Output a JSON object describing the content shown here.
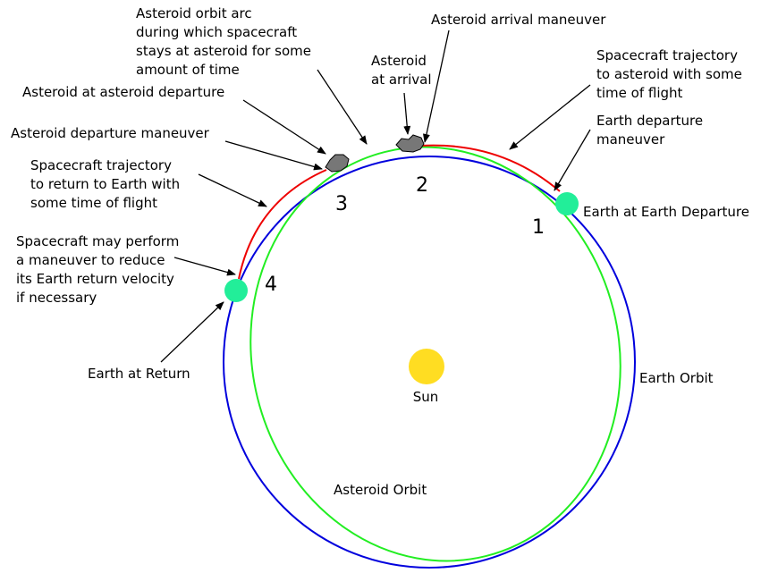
{
  "labels": {
    "orbit_arc": [
      "Asteroid orbit arc",
      "during which spacecraft",
      "stays at asteroid for some",
      "amount of time"
    ],
    "arrival_maneuver": [
      "Asteroid arrival maneuver"
    ],
    "asteroid_at_arrival": [
      "Asteroid",
      "at arrival"
    ],
    "trajectory_to_asteroid": [
      "Spacecraft trajectory",
      "to asteroid with some",
      "time of flight"
    ],
    "earth_departure_maneuver": [
      "Earth departure",
      "maneuver"
    ],
    "asteroid_at_departure": [
      "Asteroid at asteroid departure"
    ],
    "asteroid_departure_maneuver": [
      "Asteroid departure maneuver"
    ],
    "trajectory_return": [
      "Spacecraft trajectory",
      "to return to Earth with",
      "some time of flight"
    ],
    "return_maneuver": [
      "Spacecraft may perform",
      "a maneuver to reduce",
      "its Earth return velocity",
      "if necessary"
    ],
    "earth_at_return": [
      "Earth at Return"
    ],
    "earth_at_departure": [
      "Earth at Earth Departure"
    ],
    "earth_orbit": [
      "Earth Orbit"
    ],
    "sun": [
      "Sun"
    ],
    "asteroid_orbit": [
      "Asteroid Orbit"
    ]
  },
  "steps": [
    "1",
    "2",
    "3",
    "4"
  ]
}
